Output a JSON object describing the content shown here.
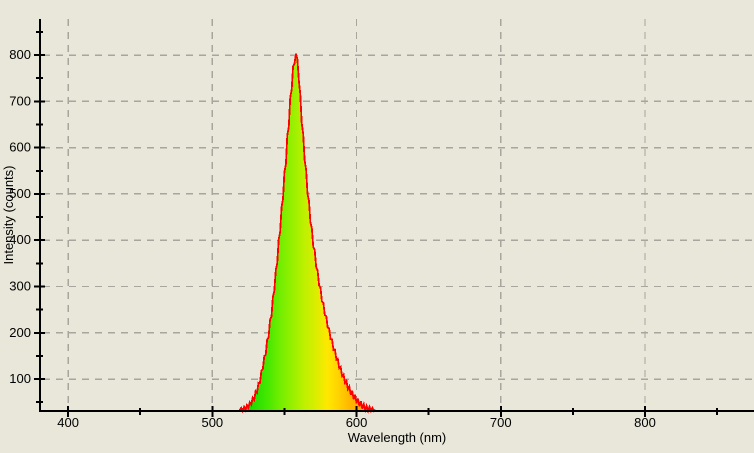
{
  "app": {
    "background_color": "#e9e7da"
  },
  "chart_data": {
    "type": "area",
    "title": "",
    "xlabel": "Wavelength (nm)",
    "ylabel": "Intensity (counts)",
    "grid": {
      "show": true,
      "color": "#a6a69e",
      "dash": "7 6"
    },
    "axis_color": "#000000",
    "x_axis": {
      "range": [
        380.5,
        875.6
      ],
      "major_ticks": [
        400,
        500,
        600,
        700,
        800
      ],
      "tick_labels": [
        "400",
        "500",
        "600",
        "700",
        "800"
      ],
      "minor_ticks": [
        450,
        550,
        650,
        750,
        850
      ]
    },
    "y_axis": {
      "range": [
        31,
        878
      ],
      "major_ticks": [
        100,
        200,
        300,
        400,
        500,
        600,
        700,
        800
      ],
      "tick_labels": [
        "100",
        "200",
        "300",
        "400",
        "500",
        "600",
        "700",
        "800"
      ],
      "minor_ticks": [
        50,
        150,
        250,
        350,
        450,
        550,
        650,
        750,
        850
      ]
    },
    "trace": {
      "stroke_color": "#ff0000",
      "peak_nm": 558,
      "peak_counts": 803,
      "fill_gradient": [
        {
          "nm": 519,
          "color": "#00cc00"
        },
        {
          "nm": 528,
          "color": "#22dd00"
        },
        {
          "nm": 538,
          "color": "#44e800"
        },
        {
          "nm": 548,
          "color": "#77ee00"
        },
        {
          "nm": 556,
          "color": "#99f000"
        },
        {
          "nm": 563,
          "color": "#bbf000"
        },
        {
          "nm": 571,
          "color": "#d8ee00"
        },
        {
          "nm": 580,
          "color": "#ffe800"
        },
        {
          "nm": 588,
          "color": "#ffd000"
        },
        {
          "nm": 596,
          "color": "#ffb400"
        },
        {
          "nm": 613,
          "color": "#ff9900"
        }
      ],
      "points": [
        [
          519,
          33
        ],
        [
          520,
          38
        ],
        [
          521,
          31
        ],
        [
          522,
          40
        ],
        [
          523,
          33
        ],
        [
          524,
          44
        ],
        [
          525,
          38
        ],
        [
          526,
          50
        ],
        [
          527,
          45
        ],
        [
          528,
          60
        ],
        [
          529,
          55
        ],
        [
          530,
          74
        ],
        [
          531,
          70
        ],
        [
          532,
          92
        ],
        [
          533,
          91
        ],
        [
          534,
          118
        ],
        [
          535,
          121
        ],
        [
          536,
          150
        ],
        [
          537,
          152
        ],
        [
          538,
          185
        ],
        [
          539,
          190
        ],
        [
          540,
          228
        ],
        [
          541,
          235
        ],
        [
          542,
          278
        ],
        [
          543,
          290
        ],
        [
          544,
          336
        ],
        [
          545,
          350
        ],
        [
          546,
          402
        ],
        [
          547,
          417
        ],
        [
          548,
          472
        ],
        [
          549,
          489
        ],
        [
          550,
          547
        ],
        [
          551,
          564
        ],
        [
          552,
          627
        ],
        [
          553,
          645
        ],
        [
          554,
          708
        ],
        [
          555,
          726
        ],
        [
          556,
          776
        ],
        [
          557,
          782
        ],
        [
          558,
          803
        ],
        [
          559,
          791
        ],
        [
          560,
          744
        ],
        [
          561,
          715
        ],
        [
          562,
          653
        ],
        [
          563,
          630
        ],
        [
          564,
          573
        ],
        [
          565,
          553
        ],
        [
          566,
          500
        ],
        [
          567,
          485
        ],
        [
          568,
          438
        ],
        [
          569,
          427
        ],
        [
          570,
          385
        ],
        [
          571,
          379
        ],
        [
          572,
          341
        ],
        [
          573,
          335
        ],
        [
          574,
          302
        ],
        [
          575,
          298
        ],
        [
          576,
          268
        ],
        [
          577,
          265
        ],
        [
          578,
          238
        ],
        [
          579,
          236
        ],
        [
          580,
          211
        ],
        [
          581,
          210
        ],
        [
          582,
          186
        ],
        [
          583,
          186
        ],
        [
          584,
          163
        ],
        [
          585,
          164
        ],
        [
          586,
          142
        ],
        [
          587,
          144
        ],
        [
          588,
          123
        ],
        [
          589,
          126
        ],
        [
          590,
          106
        ],
        [
          591,
          110
        ],
        [
          592,
          91
        ],
        [
          593,
          96
        ],
        [
          594,
          78
        ],
        [
          595,
          84
        ],
        [
          596,
          66
        ],
        [
          597,
          75
        ],
        [
          598,
          56
        ],
        [
          599,
          66
        ],
        [
          600,
          48
        ],
        [
          601,
          58
        ],
        [
          602,
          41
        ],
        [
          603,
          52
        ],
        [
          604,
          36
        ],
        [
          605,
          46
        ],
        [
          606,
          33
        ],
        [
          607,
          42
        ],
        [
          608,
          31
        ],
        [
          609,
          40
        ],
        [
          610,
          31
        ],
        [
          611,
          38
        ],
        [
          612,
          31
        ],
        [
          613,
          34
        ]
      ]
    }
  }
}
